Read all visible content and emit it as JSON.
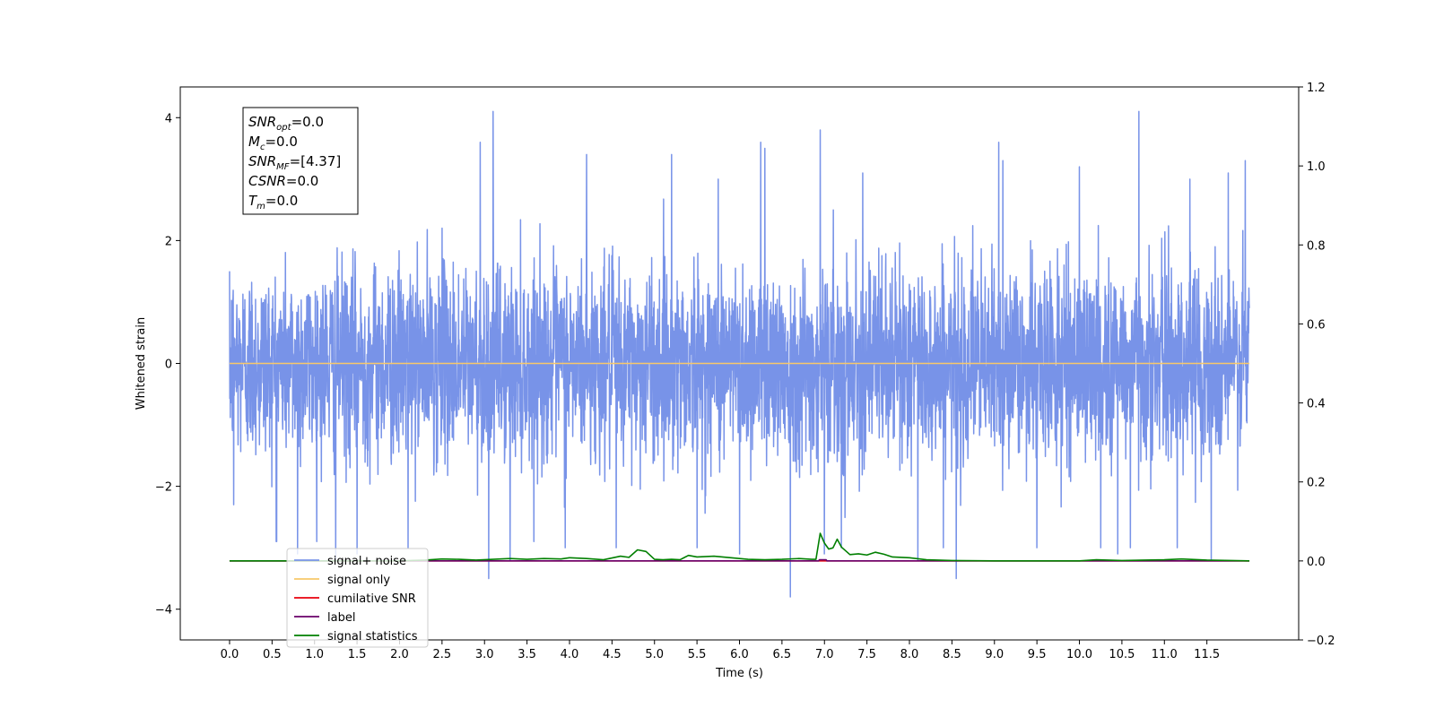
{
  "chart_data": {
    "type": "line",
    "title": "",
    "xlabel": "Time (s)",
    "ylabel": "Whitened strain",
    "xlim": [
      -0.58,
      12.58
    ],
    "ylim": [
      -4.5,
      4.5
    ],
    "y2lim": [
      -0.2,
      1.2
    ],
    "grid": false,
    "legend_position": "lower-left",
    "x_ticks": [
      0.0,
      0.5,
      1.0,
      1.5,
      2.0,
      2.5,
      3.0,
      3.5,
      4.0,
      4.5,
      5.0,
      5.5,
      6.0,
      6.5,
      7.0,
      7.5,
      8.0,
      8.5,
      9.0,
      9.5,
      10.0,
      10.5,
      11.0,
      11.5
    ],
    "x_tick_labels": [
      "0.0",
      "0.5",
      "1.0",
      "1.5",
      "2.0",
      "2.5",
      "3.0",
      "3.5",
      "4.0",
      "4.5",
      "5.0",
      "5.5",
      "6.0",
      "6.5",
      "7.0",
      "7.5",
      "8.0",
      "8.5",
      "9.0",
      "9.5",
      "10.0",
      "10.5",
      "11.0",
      "11.5"
    ],
    "y_ticks": [
      -4,
      -2,
      0,
      2,
      4
    ],
    "y_tick_labels": [
      "−4",
      "−2",
      "0",
      "2",
      "4"
    ],
    "y2_ticks": [
      -0.2,
      0.0,
      0.2,
      0.4,
      0.6,
      0.8,
      1.0,
      1.2
    ],
    "y2_tick_labels": [
      "−0.2",
      "0.0",
      "0.2",
      "0.4",
      "0.6",
      "0.8",
      "1.0",
      "1.2"
    ],
    "series": [
      {
        "name": "signal+ noise",
        "axis": "left",
        "color": "#7893e8",
        "x_range": [
          0.0,
          12.0
        ],
        "spikes": [
          [
            0.0,
            1.5
          ],
          [
            0.05,
            -2.3
          ],
          [
            0.55,
            -2.9
          ],
          [
            0.8,
            -3.1
          ],
          [
            1.25,
            -3.2
          ],
          [
            1.5,
            -3.1
          ],
          [
            2.1,
            -3.0
          ],
          [
            2.5,
            2.2
          ],
          [
            2.95,
            3.6
          ],
          [
            3.05,
            -3.5
          ],
          [
            3.1,
            4.1
          ],
          [
            3.3,
            -3.2
          ],
          [
            3.95,
            -3.0
          ],
          [
            4.2,
            3.4
          ],
          [
            4.55,
            -3.0
          ],
          [
            5.2,
            3.4
          ],
          [
            5.5,
            -3.0
          ],
          [
            5.75,
            3.0
          ],
          [
            6.0,
            -3.1
          ],
          [
            6.25,
            3.6
          ],
          [
            6.3,
            3.5
          ],
          [
            6.6,
            -3.8
          ],
          [
            6.95,
            3.8
          ],
          [
            7.0,
            -3.1
          ],
          [
            7.2,
            -3.0
          ],
          [
            7.45,
            3.1
          ],
          [
            8.1,
            -3.2
          ],
          [
            8.4,
            -3.0
          ],
          [
            8.55,
            -3.5
          ],
          [
            9.05,
            3.6
          ],
          [
            9.1,
            3.3
          ],
          [
            9.5,
            -3.0
          ],
          [
            10.0,
            3.2
          ],
          [
            10.25,
            -3.0
          ],
          [
            10.45,
            -3.1
          ],
          [
            10.6,
            -3.0
          ],
          [
            10.7,
            4.1
          ],
          [
            11.15,
            -3.0
          ],
          [
            11.3,
            3.0
          ],
          [
            11.55,
            -3.2
          ],
          [
            11.75,
            3.1
          ],
          [
            11.95,
            3.3
          ],
          [
            12.0,
            0.9
          ]
        ]
      },
      {
        "name": "signal only",
        "axis": "left",
        "color": "#f7c86a",
        "x": [
          0.0,
          12.0
        ],
        "y": [
          0.0,
          0.0
        ]
      },
      {
        "name": "cumilative SNR",
        "axis": "right",
        "color": "#e8000b",
        "x": [
          0.0,
          12.0
        ],
        "y": [
          0.0,
          0.0
        ]
      },
      {
        "name": "label",
        "axis": "right",
        "color": "#6a006a",
        "x": [
          0.0,
          6.93,
          6.94,
          7.02,
          7.03,
          12.0
        ],
        "y": [
          0.0,
          0.0,
          0.003,
          0.003,
          0.0,
          0.0
        ]
      },
      {
        "name": "signal statistics",
        "axis": "right",
        "color": "#007f00",
        "x": [
          0.0,
          2.0,
          2.3,
          2.5,
          2.7,
          2.9,
          3.1,
          3.3,
          3.5,
          3.7,
          3.9,
          4.0,
          4.2,
          4.4,
          4.6,
          4.7,
          4.8,
          4.9,
          5.0,
          5.1,
          5.2,
          5.3,
          5.4,
          5.5,
          5.7,
          5.9,
          6.1,
          6.3,
          6.5,
          6.7,
          6.85,
          6.9,
          6.95,
          7.0,
          7.05,
          7.1,
          7.15,
          7.2,
          7.3,
          7.4,
          7.5,
          7.6,
          7.7,
          7.8,
          8.0,
          8.2,
          8.5,
          9.0,
          9.5,
          10.0,
          10.2,
          10.5,
          11.0,
          11.2,
          11.5,
          12.0
        ],
        "y": [
          0.0,
          0.0,
          0.002,
          0.005,
          0.004,
          0.002,
          0.004,
          0.006,
          0.004,
          0.006,
          0.005,
          0.008,
          0.006,
          0.003,
          0.012,
          0.009,
          0.028,
          0.024,
          0.004,
          0.003,
          0.004,
          0.003,
          0.014,
          0.01,
          0.012,
          0.008,
          0.004,
          0.003,
          0.004,
          0.006,
          0.004,
          0.004,
          0.07,
          0.045,
          0.03,
          0.033,
          0.055,
          0.035,
          0.016,
          0.018,
          0.015,
          0.022,
          0.017,
          0.01,
          0.008,
          0.003,
          0.001,
          0.0,
          0.0,
          0.0,
          0.003,
          0.001,
          0.003,
          0.005,
          0.002,
          0.0
        ]
      }
    ],
    "legend": [
      {
        "label": "signal+ noise",
        "color": "#7893e8"
      },
      {
        "label": "signal only",
        "color": "#f7c86a"
      },
      {
        "label": "cumilative SNR",
        "color": "#e8000b"
      },
      {
        "label": "label",
        "color": "#6a006a"
      },
      {
        "label": "signal statistics",
        "color": "#007f00"
      }
    ],
    "annotation": {
      "lines": [
        {
          "base": "SNR",
          "sub": "opt",
          "value": "=0.0"
        },
        {
          "base": "M",
          "sub": "c",
          "value": "=0.0"
        },
        {
          "base": "SNR",
          "sub": "MF",
          "value": "=[4.37]"
        },
        {
          "base": "CSNR",
          "sub": "",
          "value": "=0.0"
        },
        {
          "base": "T",
          "sub": "m",
          "value": "=0.0"
        }
      ]
    }
  }
}
